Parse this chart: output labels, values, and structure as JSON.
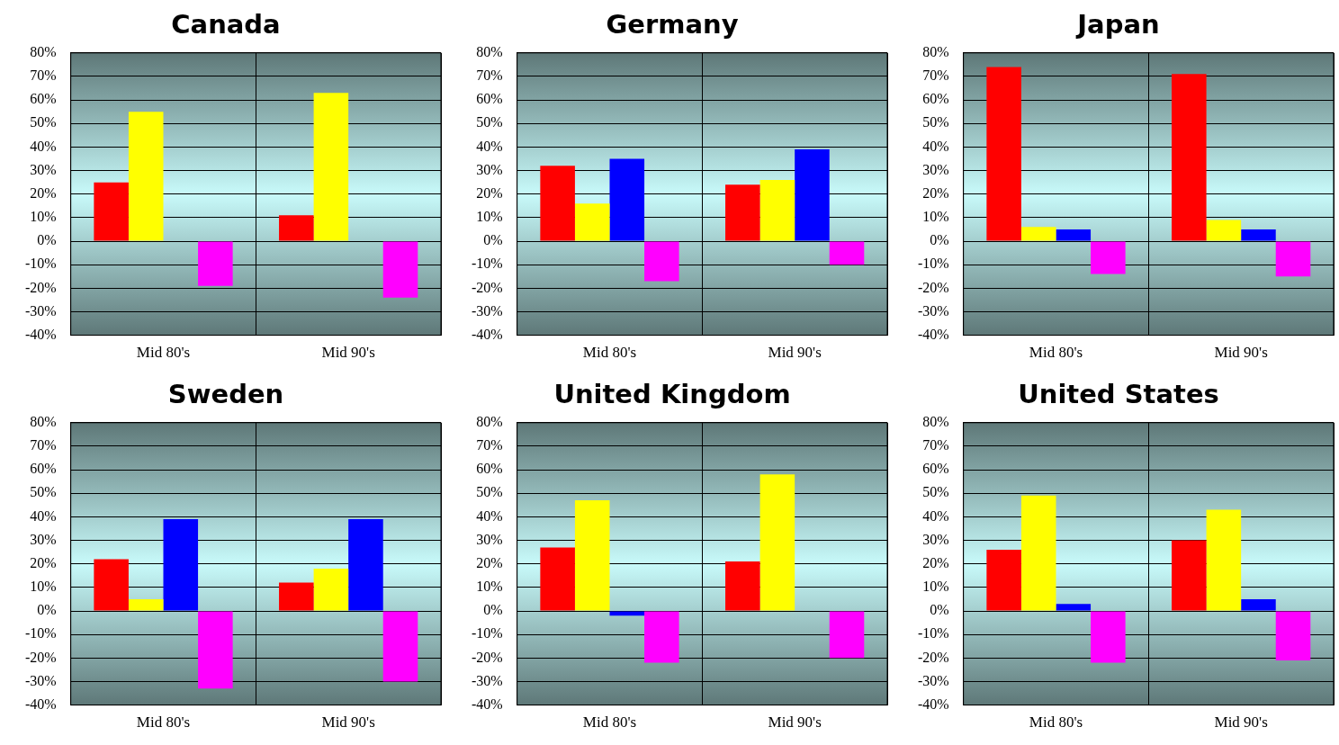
{
  "chart_data": [
    {
      "type": "bar",
      "title": "Canada",
      "categories": [
        "Mid 80's",
        "Mid 90's"
      ],
      "series": [
        {
          "color": "#ff0000",
          "values": [
            25,
            11
          ]
        },
        {
          "color": "#ffff00",
          "values": [
            55,
            63
          ]
        },
        {
          "color": "#0000ff",
          "values": [
            null,
            null
          ]
        },
        {
          "color": "#ff00ff",
          "values": [
            -19,
            -24
          ]
        }
      ],
      "ylim": [
        -40,
        80
      ],
      "yticks": [
        {
          "value": -40,
          "label": "-40%"
        },
        {
          "value": -30,
          "label": "-30%"
        },
        {
          "value": -20,
          "label": "-20%"
        },
        {
          "value": -10,
          "label": "-10%"
        },
        {
          "value": 0,
          "label": "0%"
        },
        {
          "value": 10,
          "label": "10%"
        },
        {
          "value": 20,
          "label": "20%"
        },
        {
          "value": 30,
          "label": "30%"
        },
        {
          "value": 40,
          "label": "40%"
        },
        {
          "value": 50,
          "label": "50%"
        },
        {
          "value": 60,
          "label": "60%"
        },
        {
          "value": 70,
          "label": "70%"
        },
        {
          "value": 80,
          "label": "80%"
        }
      ],
      "grid": true
    },
    {
      "type": "bar",
      "title": "Germany",
      "categories": [
        "Mid 80's",
        "Mid 90's"
      ],
      "series": [
        {
          "color": "#ff0000",
          "values": [
            32,
            24
          ]
        },
        {
          "color": "#ffff00",
          "values": [
            16,
            26
          ]
        },
        {
          "color": "#0000ff",
          "values": [
            35,
            39
          ]
        },
        {
          "color": "#ff00ff",
          "values": [
            -17,
            -10
          ]
        }
      ],
      "ylim": [
        -40,
        80
      ],
      "yticks": [
        {
          "value": -40,
          "label": "-40%"
        },
        {
          "value": -30,
          "label": "-30%"
        },
        {
          "value": -20,
          "label": "-20%"
        },
        {
          "value": -10,
          "label": "-10%"
        },
        {
          "value": 0,
          "label": "0%"
        },
        {
          "value": 10,
          "label": "10%"
        },
        {
          "value": 20,
          "label": "20%"
        },
        {
          "value": 30,
          "label": "30%"
        },
        {
          "value": 40,
          "label": "40%"
        },
        {
          "value": 50,
          "label": "50%"
        },
        {
          "value": 60,
          "label": "60%"
        },
        {
          "value": 70,
          "label": "70%"
        },
        {
          "value": 80,
          "label": "80%"
        }
      ],
      "grid": true
    },
    {
      "type": "bar",
      "title": "Japan",
      "categories": [
        "Mid 80's",
        "Mid 90's"
      ],
      "series": [
        {
          "color": "#ff0000",
          "values": [
            74,
            71
          ]
        },
        {
          "color": "#ffff00",
          "values": [
            6,
            9
          ]
        },
        {
          "color": "#0000ff",
          "values": [
            5,
            5
          ]
        },
        {
          "color": "#ff00ff",
          "values": [
            -14,
            -15
          ]
        }
      ],
      "ylim": [
        -40,
        80
      ],
      "yticks": [
        {
          "value": -40,
          "label": "-40%"
        },
        {
          "value": -30,
          "label": "-30%"
        },
        {
          "value": -20,
          "label": "-20%"
        },
        {
          "value": -10,
          "label": "-10%"
        },
        {
          "value": 0,
          "label": "0%"
        },
        {
          "value": 10,
          "label": "10%"
        },
        {
          "value": 20,
          "label": "20%"
        },
        {
          "value": 30,
          "label": "30%"
        },
        {
          "value": 40,
          "label": "40%"
        },
        {
          "value": 50,
          "label": "50%"
        },
        {
          "value": 60,
          "label": "60%"
        },
        {
          "value": 70,
          "label": "70%"
        },
        {
          "value": 80,
          "label": "80%"
        }
      ],
      "grid": true
    },
    {
      "type": "bar",
      "title": "Sweden",
      "categories": [
        "Mid 80's",
        "Mid 90's"
      ],
      "series": [
        {
          "color": "#ff0000",
          "values": [
            22,
            12
          ]
        },
        {
          "color": "#ffff00",
          "values": [
            5,
            18
          ]
        },
        {
          "color": "#0000ff",
          "values": [
            39,
            39
          ]
        },
        {
          "color": "#ff00ff",
          "values": [
            -33,
            -30
          ]
        }
      ],
      "ylim": [
        -40,
        80
      ],
      "yticks": [
        {
          "value": -40,
          "label": "-40%"
        },
        {
          "value": -30,
          "label": "-30%"
        },
        {
          "value": -20,
          "label": "-20%"
        },
        {
          "value": -10,
          "label": "-10%"
        },
        {
          "value": 0,
          "label": "0%"
        },
        {
          "value": 10,
          "label": "10%"
        },
        {
          "value": 20,
          "label": "20%"
        },
        {
          "value": 30,
          "label": "30%"
        },
        {
          "value": 40,
          "label": "40%"
        },
        {
          "value": 50,
          "label": "50%"
        },
        {
          "value": 60,
          "label": "60%"
        },
        {
          "value": 70,
          "label": "70%"
        },
        {
          "value": 80,
          "label": "80%"
        }
      ],
      "grid": true
    },
    {
      "type": "bar",
      "title": "United Kingdom",
      "categories": [
        "Mid 80's",
        "Mid 90's"
      ],
      "series": [
        {
          "color": "#ff0000",
          "values": [
            27,
            21
          ]
        },
        {
          "color": "#ffff00",
          "values": [
            47,
            58
          ]
        },
        {
          "color": "#0000ff",
          "values": [
            -2,
            null
          ]
        },
        {
          "color": "#ff00ff",
          "values": [
            -22,
            -20
          ]
        }
      ],
      "ylim": [
        -40,
        80
      ],
      "yticks": [
        {
          "value": -40,
          "label": "-40%"
        },
        {
          "value": -30,
          "label": "-30%"
        },
        {
          "value": -20,
          "label": "-20%"
        },
        {
          "value": -10,
          "label": "-10%"
        },
        {
          "value": 0,
          "label": "0%"
        },
        {
          "value": 10,
          "label": "10%"
        },
        {
          "value": 20,
          "label": "20%"
        },
        {
          "value": 30,
          "label": "30%"
        },
        {
          "value": 40,
          "label": "40%"
        },
        {
          "value": 50,
          "label": "50%"
        },
        {
          "value": 60,
          "label": "60%"
        },
        {
          "value": 70,
          "label": "70%"
        },
        {
          "value": 80,
          "label": "80%"
        }
      ],
      "grid": true
    },
    {
      "type": "bar",
      "title": "United States",
      "categories": [
        "Mid 80's",
        "Mid 90's"
      ],
      "series": [
        {
          "color": "#ff0000",
          "values": [
            26,
            30
          ]
        },
        {
          "color": "#ffff00",
          "values": [
            49,
            43
          ]
        },
        {
          "color": "#0000ff",
          "values": [
            3,
            5
          ]
        },
        {
          "color": "#ff00ff",
          "values": [
            -22,
            -21
          ]
        }
      ],
      "ylim": [
        -40,
        80
      ],
      "yticks": [
        {
          "value": -40,
          "label": "-40%"
        },
        {
          "value": -30,
          "label": "-30%"
        },
        {
          "value": -20,
          "label": "-20%"
        },
        {
          "value": -10,
          "label": "-10%"
        },
        {
          "value": 0,
          "label": "0%"
        },
        {
          "value": 10,
          "label": "10%"
        },
        {
          "value": 20,
          "label": "20%"
        },
        {
          "value": 30,
          "label": "30%"
        },
        {
          "value": 40,
          "label": "40%"
        },
        {
          "value": 50,
          "label": "50%"
        },
        {
          "value": 60,
          "label": "60%"
        },
        {
          "value": 70,
          "label": "70%"
        },
        {
          "value": 80,
          "label": "80%"
        }
      ],
      "grid": true
    }
  ]
}
